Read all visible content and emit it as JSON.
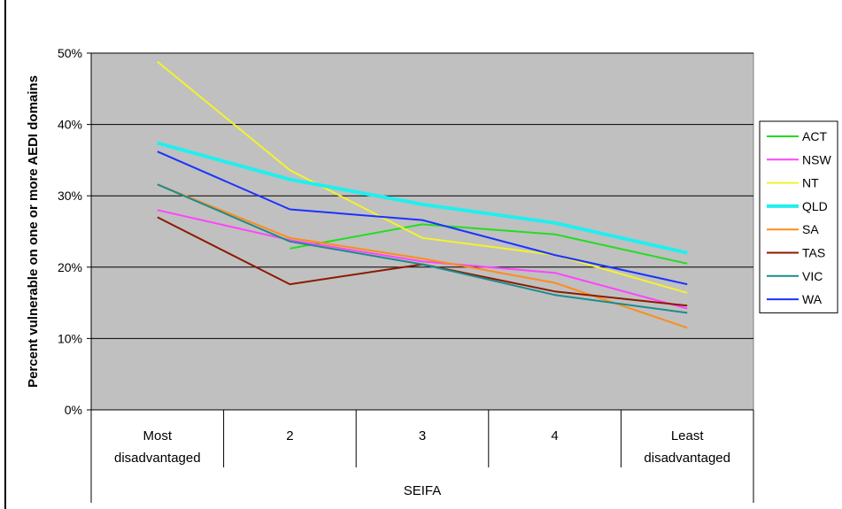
{
  "chart_data": {
    "type": "line",
    "title": "",
    "xlabel": "SEIFA",
    "ylabel": "Percent vulnerable on one or more AEDI domains",
    "y_ticks": [
      "0%",
      "10%",
      "20%",
      "30%",
      "40%",
      "50%"
    ],
    "ylim": [
      0,
      50
    ],
    "grid": "horizontal",
    "legend_position": "right",
    "categories": [
      [
        "Most",
        "disadvantaged"
      ],
      [
        "2"
      ],
      [
        "3"
      ],
      [
        "4"
      ],
      [
        "Least",
        "disadvantaged"
      ]
    ],
    "plot_background": "#c0c0c0",
    "series": [
      {
        "name": "ACT",
        "color": "#22dd22",
        "width": 2,
        "values": [
          null,
          22.6,
          26.0,
          24.6,
          20.5
        ]
      },
      {
        "name": "NSW",
        "color": "#ff44ff",
        "width": 2,
        "values": [
          28.0,
          23.8,
          20.8,
          19.2,
          14.2
        ]
      },
      {
        "name": "NT",
        "color": "#f2f230",
        "width": 2,
        "values": [
          48.8,
          33.6,
          24.1,
          21.7,
          16.4
        ]
      },
      {
        "name": "QLD",
        "color": "#22eeee",
        "width": 4,
        "values": [
          37.4,
          32.3,
          28.8,
          26.2,
          22.0
        ]
      },
      {
        "name": "SA",
        "color": "#ff8c1a",
        "width": 2,
        "values": [
          31.6,
          24.1,
          21.2,
          17.8,
          11.5
        ]
      },
      {
        "name": "TAS",
        "color": "#8b1a00",
        "width": 2,
        "values": [
          27.0,
          17.6,
          20.4,
          16.6,
          14.6
        ]
      },
      {
        "name": "VIC",
        "color": "#1a8c8c",
        "width": 2,
        "values": [
          31.6,
          23.6,
          20.4,
          16.1,
          13.6
        ]
      },
      {
        "name": "WA",
        "color": "#1a33ff",
        "width": 2,
        "values": [
          36.2,
          28.1,
          26.6,
          21.7,
          17.6
        ]
      }
    ]
  }
}
